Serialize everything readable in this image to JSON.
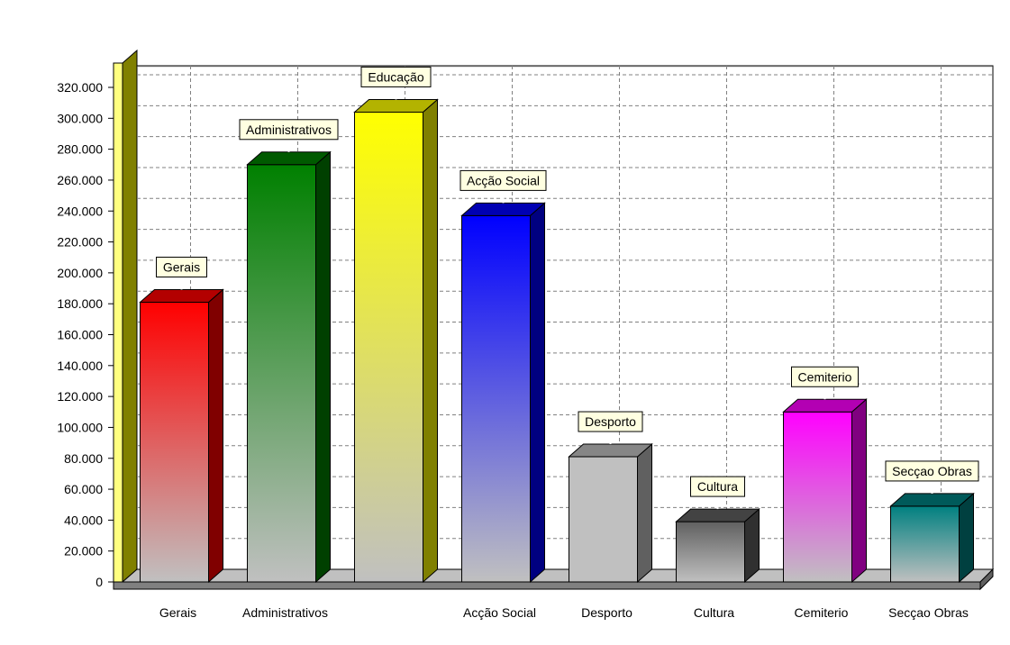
{
  "chart_data": {
    "type": "bar",
    "title": "",
    "xlabel": "",
    "ylabel": "",
    "ylim": [
      0,
      320000
    ],
    "y_ticks": [
      0,
      20000,
      40000,
      60000,
      80000,
      100000,
      120000,
      140000,
      160000,
      180000,
      200000,
      220000,
      240000,
      260000,
      280000,
      300000,
      320000
    ],
    "y_tick_labels": [
      "0",
      "20.000",
      "40.000",
      "60.000",
      "80.000",
      "100.000",
      "120.000",
      "140.000",
      "160.000",
      "180.000",
      "200.000",
      "220.000",
      "240.000",
      "260.000",
      "280.000",
      "300.000",
      "320.000"
    ],
    "categories": [
      "Gerais",
      "Administrativos",
      "Educação",
      "Acção Social",
      "Desporto",
      "Cultura",
      "Cemiterio",
      "Secçao Obras"
    ],
    "x_tick_labels": [
      "Gerais",
      "Administrativos",
      "",
      "Acção Social",
      "Desporto",
      "Cultura",
      "Cemiterio",
      "Secçao Obras"
    ],
    "values": [
      181000,
      270000,
      304000,
      237000,
      81000,
      39000,
      110000,
      49000
    ],
    "data_labels": [
      "Gerais",
      "Administrativos",
      "Educação",
      "Acção Social",
      "Desporto",
      "Cultura",
      "Cemiterio",
      "Secçao Obras"
    ],
    "colors": [
      "#ff0000",
      "#008000",
      "#ffff00",
      "#0000ff",
      "#c0c0c0",
      "#606060",
      "#ff00ff",
      "#008080"
    ],
    "style": "3d-gradient-bars",
    "grid": true
  }
}
